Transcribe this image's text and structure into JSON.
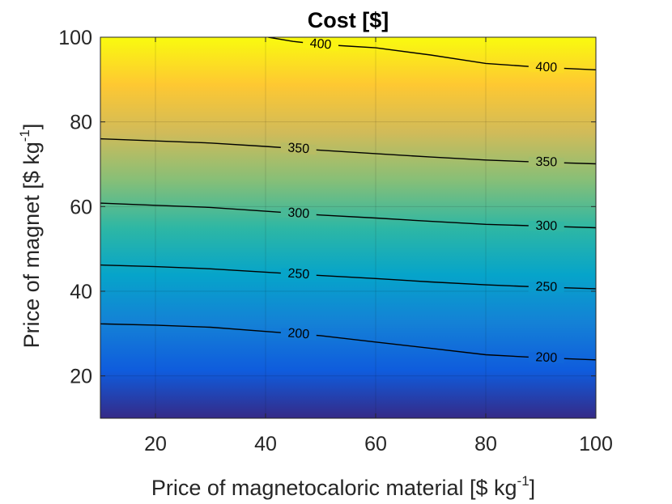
{
  "chart_data": {
    "type": "heatmap",
    "title": "Cost [$]",
    "xlabel": "Price of magnetocaloric material [$ kg",
    "xlabel_sup": "-1",
    "xlabel_end": "]",
    "ylabel": "Price of magnet [$ kg",
    "ylabel_sup": "-1",
    "ylabel_end": "]",
    "xlim": [
      10,
      100
    ],
    "ylim": [
      10,
      100
    ],
    "xticks": [
      20,
      40,
      60,
      80,
      100
    ],
    "yticks": [
      20,
      40,
      60,
      80,
      100
    ],
    "grid": true,
    "colormap": "parula",
    "z_range": [
      110,
      460
    ],
    "colormap_stops": [
      "#352a87",
      "#0f5cdd",
      "#1481d6",
      "#06a4ca",
      "#2eb7a4",
      "#87bf77",
      "#d1bb59",
      "#fec832",
      "#f9fb0e"
    ],
    "contours": [
      {
        "level": 200,
        "x": [
          10,
          20,
          30,
          40,
          50,
          60,
          70,
          80,
          90,
          100
        ],
        "y": [
          32.3,
          32.0,
          31.5,
          30.5,
          29.5,
          28.0,
          26.5,
          25.0,
          24.3,
          23.8
        ],
        "labels_at_x": [
          46,
          91
        ]
      },
      {
        "level": 250,
        "x": [
          10,
          20,
          30,
          40,
          50,
          60,
          70,
          80,
          90,
          100
        ],
        "y": [
          46.2,
          45.8,
          45.3,
          44.5,
          43.7,
          43.0,
          42.2,
          41.5,
          41.0,
          40.6
        ],
        "labels_at_x": [
          46,
          91
        ]
      },
      {
        "level": 300,
        "x": [
          10,
          20,
          30,
          40,
          50,
          60,
          70,
          80,
          90,
          100
        ],
        "y": [
          60.8,
          60.3,
          59.8,
          58.9,
          58.0,
          57.3,
          56.5,
          55.8,
          55.4,
          55.0
        ],
        "labels_at_x": [
          46,
          91
        ]
      },
      {
        "level": 350,
        "x": [
          10,
          20,
          30,
          40,
          50,
          60,
          70,
          80,
          90,
          100
        ],
        "y": [
          76.0,
          75.5,
          75.0,
          74.2,
          73.3,
          72.5,
          71.7,
          71.0,
          70.5,
          70.1
        ],
        "labels_at_x": [
          46,
          91
        ]
      },
      {
        "level": 400,
        "x": [
          40.5,
          45,
          50,
          55,
          60,
          70,
          80,
          90,
          100
        ],
        "y": [
          100,
          99.0,
          98.3,
          97.9,
          97.5,
          95.8,
          93.8,
          92.9,
          92.3
        ],
        "labels_at_x": [
          50,
          91
        ]
      }
    ]
  }
}
